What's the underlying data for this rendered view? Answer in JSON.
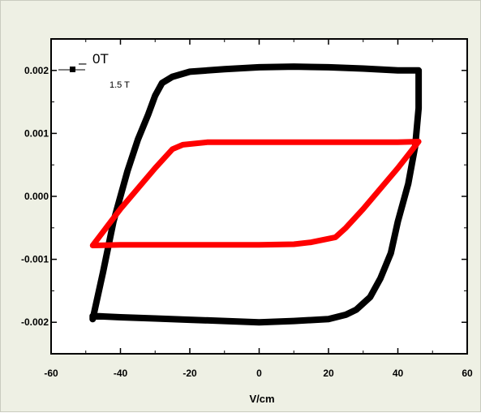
{
  "chart_data": {
    "type": "line",
    "title": "",
    "xlabel": "V/cm",
    "ylabel": "",
    "xlim": [
      -60,
      60
    ],
    "ylim": [
      -0.0025,
      0.0025
    ],
    "x_ticks": [
      -60,
      -40,
      -20,
      0,
      20,
      40,
      60
    ],
    "x_tick_labels": [
      "-60",
      "-40",
      "-20",
      "0",
      "20",
      "40",
      "60"
    ],
    "y_ticks": [
      0.002,
      0.001,
      0.0,
      -0.001,
      -0.002
    ],
    "y_tick_labels": [
      "0.002",
      "0.001",
      "0.000",
      "-0.001",
      "-0.002"
    ],
    "grid": false,
    "legend_position": "top-left",
    "legend": [
      "0T",
      "1.5 T"
    ],
    "series": [
      {
        "name": "0T",
        "color": "#000000",
        "x": [
          -48,
          -45,
          -42,
          -38,
          -35,
          -32,
          -30,
          -28,
          -25,
          -20,
          -10,
          0,
          10,
          20,
          30,
          40,
          46,
          46,
          45,
          43,
          40,
          38,
          35,
          32,
          30,
          28,
          25,
          20,
          10,
          0,
          -10,
          -20,
          -30,
          -40,
          -48,
          -48
        ],
        "y": [
          -0.00195,
          -0.0012,
          -0.0004,
          0.0004,
          0.0009,
          0.0013,
          0.0016,
          0.0018,
          0.0019,
          0.00198,
          0.00202,
          0.00205,
          0.00206,
          0.00205,
          0.00203,
          0.002,
          0.002,
          0.0014,
          0.0008,
          0.0002,
          -0.0004,
          -0.0009,
          -0.0013,
          -0.0016,
          -0.0017,
          -0.0018,
          -0.00188,
          -0.00195,
          -0.00198,
          -0.002,
          -0.00198,
          -0.00196,
          -0.00194,
          -0.00192,
          -0.0019,
          -0.00195
        ]
      },
      {
        "name": "1.5 T",
        "color": "#ff0000",
        "x": [
          -48,
          -40,
          -30,
          -25,
          -22,
          -15,
          -10,
          0,
          10,
          20,
          30,
          40,
          46,
          40,
          30,
          25,
          22,
          15,
          10,
          0,
          -10,
          -20,
          -30,
          -40,
          -48
        ],
        "y": [
          -0.00078,
          -0.0002,
          0.00045,
          0.00075,
          0.00082,
          0.00086,
          0.00086,
          0.00086,
          0.00086,
          0.00086,
          0.00086,
          0.00086,
          0.00087,
          0.00045,
          -0.0002,
          -0.0005,
          -0.00065,
          -0.00073,
          -0.00076,
          -0.00077,
          -0.00077,
          -0.00077,
          -0.00077,
          -0.00077,
          -0.00078
        ]
      }
    ]
  }
}
